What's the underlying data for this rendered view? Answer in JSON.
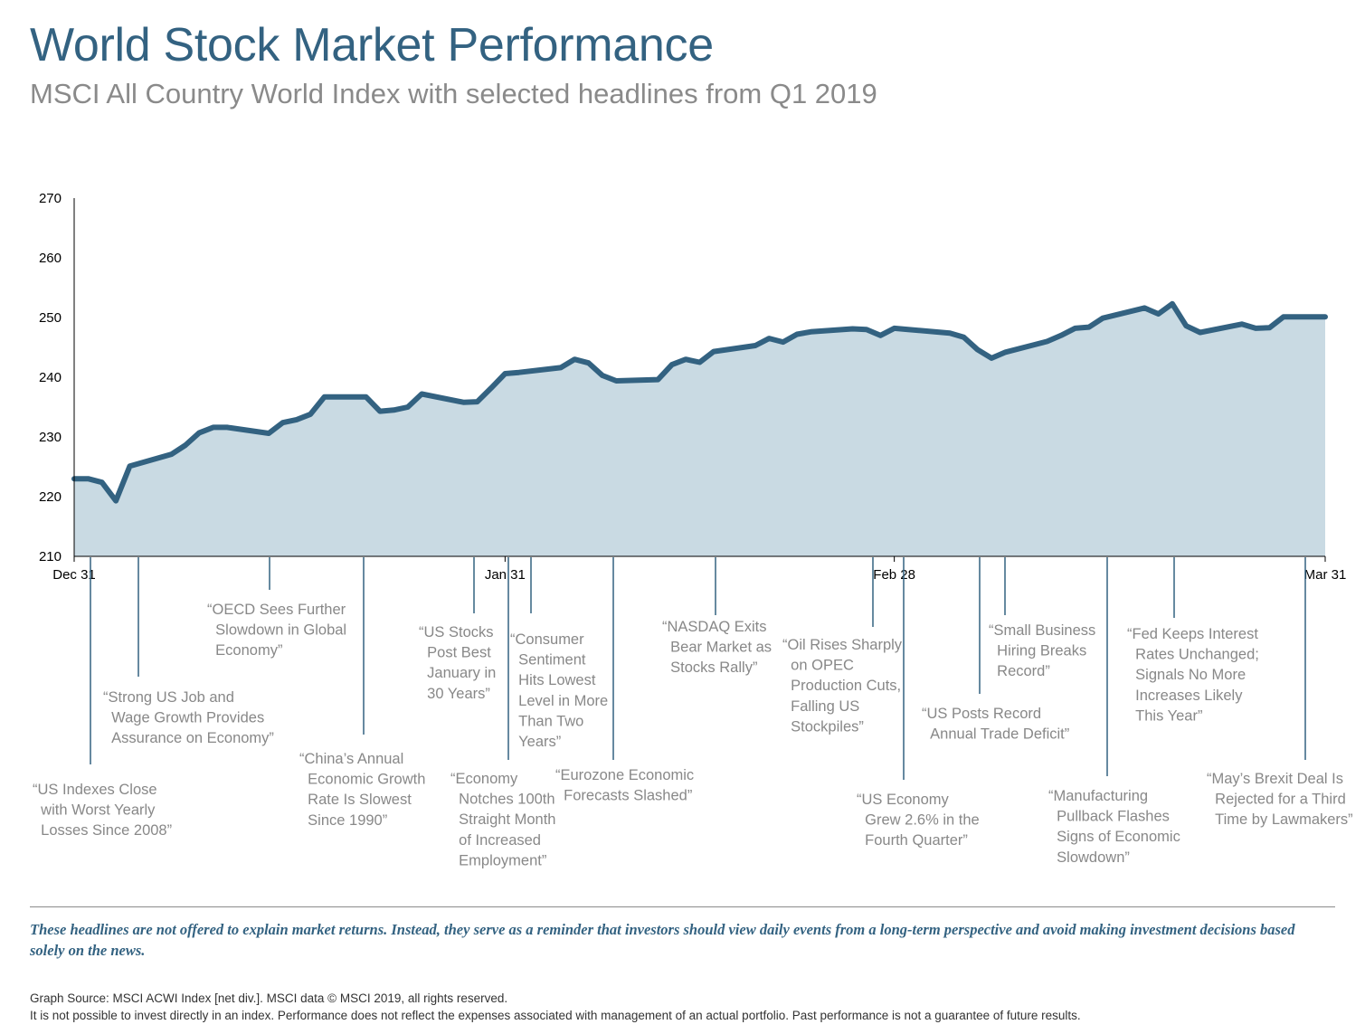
{
  "title": "World Stock Market Performance",
  "subtitle": "MSCI All Country World Index with selected headlines from Q1 2019",
  "colors": {
    "line": "#336281",
    "fill": "#c9dae3",
    "headline_text": "#888888",
    "leader": "#336281"
  },
  "chart_data": {
    "type": "area",
    "title": "",
    "xlabel": "",
    "ylabel": "",
    "ylim": [
      210,
      270
    ],
    "yticks": [
      210,
      220,
      230,
      240,
      250,
      260,
      270
    ],
    "xlim": [
      "2018-12-31",
      "2019-03-31"
    ],
    "xticks": [
      {
        "date": "2018-12-31",
        "label": "Dec 31"
      },
      {
        "date": "2019-01-31",
        "label": "Jan 31"
      },
      {
        "date": "2019-02-28",
        "label": "Feb 28"
      },
      {
        "date": "2019-03-31",
        "label": "Mar 31"
      }
    ],
    "grid": false,
    "legend": "none",
    "series": [
      {
        "x": [
          "2018-12-31",
          "2019-01-01",
          "2019-01-02",
          "2019-01-03",
          "2019-01-04",
          "2019-01-07",
          "2019-01-08",
          "2019-01-09",
          "2019-01-10",
          "2019-01-11",
          "2019-01-14",
          "2019-01-15",
          "2019-01-16",
          "2019-01-17",
          "2019-01-18",
          "2019-01-21",
          "2019-01-22",
          "2019-01-23",
          "2019-01-24",
          "2019-01-25",
          "2019-01-28",
          "2019-01-29",
          "2019-01-30",
          "2019-01-31",
          "2019-02-01",
          "2019-02-04",
          "2019-02-05",
          "2019-02-06",
          "2019-02-07",
          "2019-02-08",
          "2019-02-11",
          "2019-02-12",
          "2019-02-13",
          "2019-02-14",
          "2019-02-15",
          "2019-02-18",
          "2019-02-19",
          "2019-02-20",
          "2019-02-21",
          "2019-02-22",
          "2019-02-25",
          "2019-02-26",
          "2019-02-27",
          "2019-02-28",
          "2019-03-01",
          "2019-03-04",
          "2019-03-05",
          "2019-03-06",
          "2019-03-07",
          "2019-03-08",
          "2019-03-11",
          "2019-03-12",
          "2019-03-13",
          "2019-03-14",
          "2019-03-15",
          "2019-03-18",
          "2019-03-19",
          "2019-03-20",
          "2019-03-21",
          "2019-03-22",
          "2019-03-25",
          "2019-03-26",
          "2019-03-27",
          "2019-03-28",
          "2019-03-29",
          "2019-03-31"
        ],
        "values": [
          223.0,
          223.0,
          222.4,
          219.3,
          225.1,
          227.1,
          228.6,
          230.7,
          231.6,
          231.6,
          230.6,
          232.4,
          232.9,
          233.8,
          236.7,
          236.7,
          234.3,
          234.5,
          235.0,
          237.2,
          235.8,
          235.9,
          238.2,
          240.6,
          240.8,
          241.6,
          243.0,
          242.4,
          240.3,
          239.4,
          239.6,
          242.1,
          243.0,
          242.5,
          244.3,
          245.3,
          246.5,
          245.9,
          247.2,
          247.6,
          248.1,
          248.0,
          247.0,
          248.2,
          248.0,
          247.4,
          246.7,
          244.6,
          243.2,
          244.2,
          246.0,
          247.0,
          248.2,
          248.4,
          249.9,
          251.6,
          250.6,
          252.3,
          248.6,
          247.5,
          248.9,
          248.2,
          248.3,
          250.1,
          250.1,
          250.1
        ]
      }
    ],
    "annotations": [
      {
        "date": "2018-12-31",
        "text": "“US Indexes Close\n  with Worst Yearly\n  Losses Since 2008”"
      },
      {
        "date": "2019-01-04",
        "text": "“Strong US Job and\n  Wage Growth Provides\n  Assurance on Economy”"
      },
      {
        "date": "2019-01-14",
        "text": "“OECD Sees Further\n  Slowdown in Global\n  Economy”"
      },
      {
        "date": "2019-01-21",
        "text": "“China’s Annual\n  Economic Growth\n  Rate Is Slowest\n  Since 1990”"
      },
      {
        "date": "2019-01-29",
        "text": "“US Stocks\n  Post Best\n  January in\n  30 Years”"
      },
      {
        "date": "2019-02-01",
        "text": "“Economy\n  Notches 100th\n  Straight Month\n  of Increased\n  Employment”"
      },
      {
        "date": "2019-02-02",
        "text": "“Consumer\n  Sentiment\n  Hits Lowest\n  Level in More\n  Than Two\n  Years”"
      },
      {
        "date": "2019-02-08",
        "text": "“Eurozone Economic\n  Forecasts Slashed”"
      },
      {
        "date": "2019-02-15",
        "text": "“NASDAQ Exits\n  Bear Market as\n  Stocks Rally”"
      },
      {
        "date": "2019-02-26",
        "text": "“Oil Rises Sharply\n  on OPEC\n  Production Cuts,\n  Falling US\n  Stockpiles”"
      },
      {
        "date": "2019-02-28",
        "text": "“US Economy\n  Grew 2.6% in the\n  Fourth Quarter”"
      },
      {
        "date": "2019-03-06",
        "text": "“US Posts Record\n  Annual Trade Deficit”"
      },
      {
        "date": "2019-03-08",
        "text": "“Small Business\n  Hiring Breaks\n  Record”"
      },
      {
        "date": "2019-03-15",
        "text": "“Manufacturing\n  Pullback Flashes\n  Signs of Economic\n  Slowdown”"
      },
      {
        "date": "2019-03-20",
        "text": "“Fed Keeps Interest\n  Rates Unchanged;\n  Signals No More\n  Increases Likely\n  This Year”"
      },
      {
        "date": "2019-03-29",
        "text": "“May’s Brexit Deal Is\n  Rejected for a Third\n  Time by Lawmakers”"
      }
    ]
  },
  "footer": {
    "disclaimer": "These headlines are not offered to explain market returns. Instead, they serve as a reminder that investors should view daily events from a long-term perspective and avoid making investment decisions based solely on the news.",
    "source": "Graph Source: MSCI ACWI Index [net div.]. MSCI data © MSCI 2019, all rights reserved.",
    "note": "It is not possible to invest directly in an index. Performance does not reflect the expenses associated with management of an actual portfolio. Past performance is not a guarantee of future results."
  }
}
